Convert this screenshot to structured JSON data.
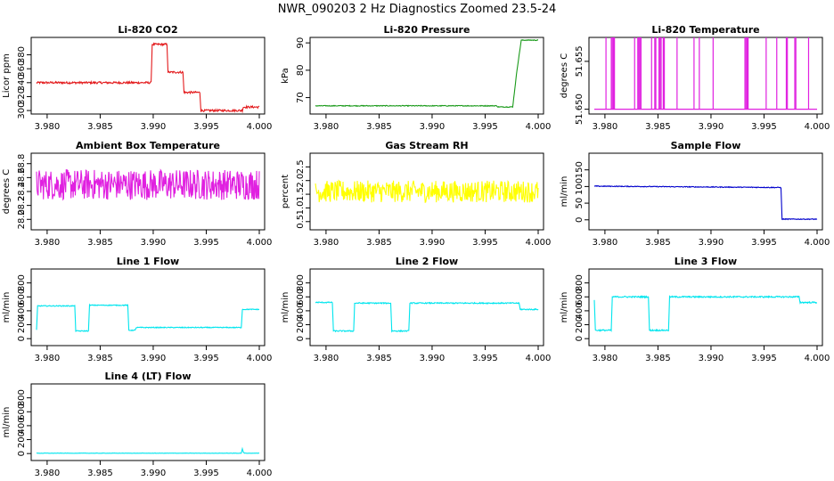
{
  "title": "NWR_090203  2 Hz Diagnostics Zoomed 23.5-24",
  "chart_data": [
    {
      "type": "line",
      "title": "Li-820 CO2",
      "ylabel": "Licor ppm",
      "color": "#e31a1c",
      "xlim": [
        3.979,
        4.0
      ],
      "ylim": [
        295,
        405
      ],
      "xticks": [
        "3.980",
        "3.985",
        "3.990",
        "3.995",
        "4.000"
      ],
      "yticks": [
        "300",
        "320",
        "340",
        "360",
        "380"
      ],
      "series": [
        {
          "x": [
            3.979,
            3.9898,
            3.9899,
            3.9913,
            3.9914,
            3.9928,
            3.9929,
            3.9944,
            3.9945,
            3.9984,
            3.9985,
            4.0
          ],
          "values": [
            340,
            340,
            395,
            395,
            355,
            355,
            326,
            326,
            300,
            300,
            305,
            305
          ],
          "noise": 1.5
        }
      ]
    },
    {
      "type": "line",
      "title": "Li-820 Pressure",
      "ylabel": "kPa",
      "color": "#1a9a1a",
      "xlim": [
        3.979,
        4.0
      ],
      "ylim": [
        64,
        92
      ],
      "xticks": [
        "3.980",
        "3.985",
        "3.990",
        "3.995",
        "4.000"
      ],
      "yticks": [
        "70",
        "80",
        "90"
      ],
      "series": [
        {
          "x": [
            3.979,
            3.9961,
            3.9962,
            3.9976,
            3.998,
            3.9984,
            4.0
          ],
          "values": [
            67,
            67,
            66.6,
            66.6,
            80,
            91,
            91
          ],
          "noise": 0.15
        }
      ]
    },
    {
      "type": "spikes",
      "title": "Li-820 Temperature",
      "ylabel": "degrees C",
      "color": "#e020e0",
      "xlim": [
        3.979,
        4.0
      ],
      "ylim": [
        51.6495,
        51.6575
      ],
      "xticks": [
        "3.980",
        "3.985",
        "3.990",
        "3.995",
        "4.000"
      ],
      "yticks": [
        "51.650",
        "51.655"
      ],
      "baseline": 51.65,
      "spike_top": 51.6575,
      "spikes_x": [
        3.9801,
        3.9806,
        3.9807,
        3.9808,
        3.9809,
        3.9828,
        3.9831,
        3.9832,
        3.9833,
        3.9834,
        3.9844,
        3.9847,
        3.9848,
        3.9851,
        3.9852,
        3.9853,
        3.9855,
        3.9856,
        3.9868,
        3.9884,
        3.9889,
        3.9902,
        3.9932,
        3.9933,
        3.9934,
        3.9935,
        3.9952,
        3.9962,
        3.9971,
        3.9972,
        3.9979,
        3.998,
        3.9992
      ]
    },
    {
      "type": "line",
      "title": "Ambient Box Temperature",
      "ylabel": "degrees C",
      "color": "#e020e0",
      "xlim": [
        3.979,
        4.0
      ],
      "ylim": [
        27.85,
        28.95
      ],
      "xticks": [
        "3.980",
        "3.985",
        "3.990",
        "3.995",
        "4.000"
      ],
      "yticks": [
        "28.0",
        "28.2",
        "28.4",
        "28.6",
        "28.8"
      ],
      "series": [
        {
          "x": [
            3.979,
            4.0
          ],
          "values": [
            28.5,
            28.5
          ],
          "noise": 0.22
        }
      ]
    },
    {
      "type": "line",
      "title": "Gas Stream RH",
      "ylabel": "percent",
      "color": "#ffff00",
      "xlim": [
        3.979,
        4.0
      ],
      "ylim": [
        0.2,
        3.0
      ],
      "xticks": [
        "3.980",
        "3.985",
        "3.990",
        "3.995",
        "4.000"
      ],
      "yticks": [
        "0.5",
        "1.0",
        "1.5",
        "2.0",
        "2.5"
      ],
      "series": [
        {
          "x": [
            3.979,
            4.0
          ],
          "values": [
            1.6,
            1.6
          ],
          "noise": 0.4
        }
      ]
    },
    {
      "type": "line",
      "title": "Sample Flow",
      "ylabel": "ml/min",
      "color": "#0000cc",
      "xlim": [
        3.979,
        4.0
      ],
      "ylim": [
        -30,
        200
      ],
      "xticks": [
        "3.980",
        "3.985",
        "3.990",
        "3.995",
        "4.000"
      ],
      "yticks": [
        "0",
        "50",
        "100",
        "150"
      ],
      "series": [
        {
          "x": [
            3.979,
            3.9966,
            3.9967,
            4.0
          ],
          "values": [
            101,
            97,
            2,
            2
          ],
          "noise": 1.2
        }
      ]
    },
    {
      "type": "line",
      "title": "Line 1 Flow",
      "ylabel": "ml/min",
      "color": "#00e5ee",
      "xlim": [
        3.979,
        4.0
      ],
      "ylim": [
        -100,
        1000
      ],
      "xticks": [
        "3.980",
        "3.985",
        "3.990",
        "3.995",
        "4.000"
      ],
      "yticks": [
        "0",
        "200",
        "400",
        "600",
        "800"
      ],
      "series": [
        {
          "x": [
            3.979,
            3.9791,
            3.9826,
            3.9827,
            3.9839,
            3.984,
            3.9876,
            3.9877,
            3.9883,
            3.9884,
            3.9983,
            3.9984,
            4.0
          ],
          "values": [
            120,
            470,
            470,
            110,
            110,
            480,
            480,
            120,
            120,
            160,
            160,
            420,
            420
          ],
          "noise": 6
        }
      ]
    },
    {
      "type": "line",
      "title": "Line 2 Flow",
      "ylabel": "ml/min",
      "color": "#00e5ee",
      "xlim": [
        3.979,
        4.0
      ],
      "ylim": [
        -100,
        1000
      ],
      "xticks": [
        "3.980",
        "3.985",
        "3.990",
        "3.995",
        "4.000"
      ],
      "yticks": [
        "0",
        "200",
        "400",
        "600",
        "800"
      ],
      "series": [
        {
          "x": [
            3.979,
            3.9806,
            3.9807,
            3.9826,
            3.9827,
            3.9861,
            3.9862,
            3.9878,
            3.9879,
            3.9982,
            3.9983,
            4.0
          ],
          "values": [
            520,
            520,
            110,
            110,
            510,
            510,
            110,
            110,
            510,
            510,
            420,
            420
          ],
          "noise": 8
        }
      ]
    },
    {
      "type": "line",
      "title": "Line 3 Flow",
      "ylabel": "ml/min",
      "color": "#00e5ee",
      "xlim": [
        3.979,
        4.0
      ],
      "ylim": [
        -100,
        1000
      ],
      "xticks": [
        "3.980",
        "3.985",
        "3.990",
        "3.995",
        "4.000"
      ],
      "yticks": [
        "0",
        "200",
        "400",
        "600",
        "800"
      ],
      "series": [
        {
          "x": [
            3.979,
            3.9791,
            3.9792,
            3.9806,
            3.9807,
            3.9841,
            3.9842,
            3.986,
            3.9861,
            3.9983,
            3.9984,
            4.0
          ],
          "values": [
            560,
            120,
            120,
            120,
            600,
            600,
            120,
            120,
            600,
            600,
            520,
            520
          ],
          "noise": 10
        }
      ]
    },
    {
      "type": "line",
      "title": "Line 4 (LT) Flow",
      "ylabel": "ml/min",
      "color": "#00e5ee",
      "xlim": [
        3.979,
        4.0
      ],
      "ylim": [
        -100,
        1000
      ],
      "xticks": [
        "3.980",
        "3.985",
        "3.990",
        "3.995",
        "4.000"
      ],
      "yticks": [
        "0",
        "200",
        "400",
        "600",
        "800"
      ],
      "series": [
        {
          "x": [
            3.979,
            3.9983,
            3.9984,
            3.9985,
            3.9986,
            4.0
          ],
          "values": [
            5,
            5,
            70,
            20,
            5,
            5
          ],
          "noise": 2
        }
      ]
    }
  ]
}
